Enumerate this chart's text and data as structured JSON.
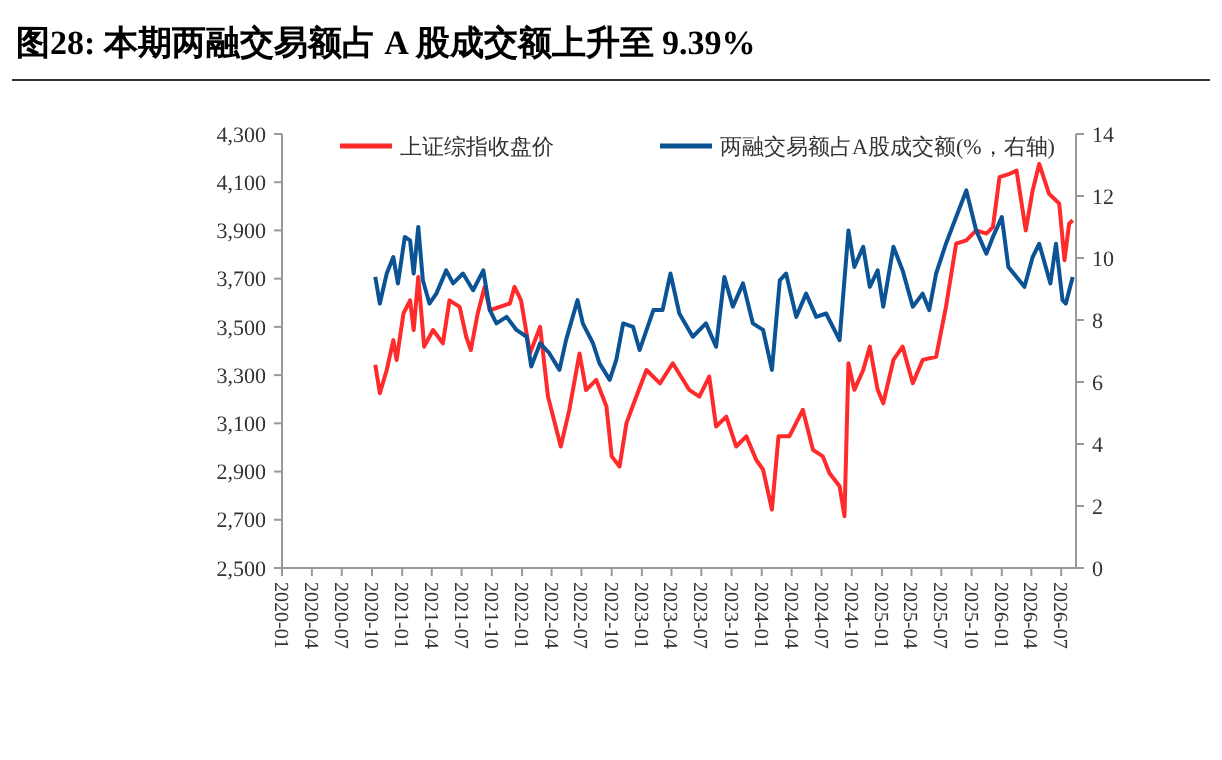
{
  "chart_data": {
    "type": "line",
    "title": "图28: 本期两融交易额占 A 股成交额上升至 9.39%",
    "legend": "top",
    "grid": false,
    "xlim": [
      "2020-01-01",
      "2026-08-15"
    ],
    "xticks": [
      "2020-01",
      "2020-04",
      "2020-07",
      "2020-10",
      "2021-01",
      "2021-04",
      "2021-07",
      "2021-10",
      "2022-01",
      "2022-04",
      "2022-07",
      "2022-10",
      "2023-01",
      "2023-04",
      "2023-07",
      "2023-10",
      "2024-01",
      "2024-04",
      "2024-07",
      "2024-10",
      "2025-01",
      "2025-04",
      "2025-07",
      "2025-10",
      "2026-01",
      "2026-04",
      "2026-07"
    ],
    "ylim": [
      2500,
      4300
    ],
    "yticks": [
      {
        "value": 2500,
        "label": "2,500"
      },
      {
        "value": 2700,
        "label": "2,700"
      },
      {
        "value": 2900,
        "label": "2,900"
      },
      {
        "value": 3100,
        "label": "3,100"
      },
      {
        "value": 3300,
        "label": "3,300"
      },
      {
        "value": 3500,
        "label": "3,500"
      },
      {
        "value": 3700,
        "label": "3,700"
      },
      {
        "value": 3900,
        "label": "3,900"
      },
      {
        "value": 4100,
        "label": "4,100"
      },
      {
        "value": 4300,
        "label": "4,300"
      }
    ],
    "y2lim": [
      0,
      14
    ],
    "y2ticks": [
      0,
      2,
      4,
      6,
      8,
      10,
      12,
      14
    ],
    "series": [
      {
        "name": "上证综指收盘价",
        "color": "#ff2a2a",
        "x": [
          "2020-10-11",
          "2020-10-25",
          "2020-11-15",
          "2020-12-05",
          "2020-12-15",
          "2021-01-05",
          "2021-01-25",
          "2021-02-05",
          "2021-02-19",
          "2021-03-09",
          "2021-04-05",
          "2021-05-05",
          "2021-05-25",
          "2021-06-25",
          "2021-07-15",
          "2021-07-29",
          "2021-08-19",
          "2021-09-09",
          "2021-09-25",
          "2021-10-25",
          "2021-11-25",
          "2021-12-09",
          "2021-12-29",
          "2022-01-25",
          "2022-02-25",
          "2022-03-21",
          "2022-04-29",
          "2022-05-25",
          "2022-06-25",
          "2022-07-15",
          "2022-08-15",
          "2022-09-15",
          "2022-10-01",
          "2022-10-25",
          "2022-11-15",
          "2022-12-15",
          "2023-01-15",
          "2023-02-25",
          "2023-04-05",
          "2023-05-25",
          "2023-06-25",
          "2023-07-25",
          "2023-08-15",
          "2023-09-15",
          "2023-10-15",
          "2023-11-15",
          "2023-12-15",
          "2024-01-05",
          "2024-02-01",
          "2024-02-21",
          "2024-03-25",
          "2024-05-05",
          "2024-06-05",
          "2024-07-05",
          "2024-07-25",
          "2024-08-25",
          "2024-09-09",
          "2024-09-21",
          "2024-10-09",
          "2024-11-05",
          "2024-11-25",
          "2024-12-19",
          "2025-01-05",
          "2025-02-05",
          "2025-03-05",
          "2025-04-05",
          "2025-05-05",
          "2025-06-15",
          "2025-07-15",
          "2025-08-15",
          "2025-09-15",
          "2025-10-15",
          "2025-11-15",
          "2025-12-05",
          "2025-12-25",
          "2026-01-25",
          "2026-02-15",
          "2026-03-15",
          "2026-04-05",
          "2026-04-25",
          "2026-05-25",
          "2026-06-25",
          "2026-07-11",
          "2026-07-25",
          "2026-08-05"
        ],
        "values": [
          3343,
          3225,
          3321,
          3445,
          3363,
          3556,
          3610,
          3487,
          3707,
          3418,
          3487,
          3432,
          3610,
          3583,
          3459,
          3404,
          3556,
          3666,
          3569,
          3583,
          3597,
          3666,
          3610,
          3390,
          3500,
          3211,
          3004,
          3156,
          3390,
          3238,
          3280,
          3170,
          2963,
          2921,
          3101,
          3211,
          3321,
          3266,
          3349,
          3239,
          3211,
          3294,
          3087,
          3128,
          3004,
          3046,
          2949,
          2908,
          2742,
          3046,
          3046,
          3156,
          2990,
          2963,
          2894,
          2839,
          2715,
          3349,
          3239,
          3321,
          3418,
          3239,
          3183,
          3363,
          3418,
          3266,
          3363,
          3376,
          3583,
          3845,
          3859,
          3900,
          3887,
          3914,
          4121,
          4135,
          4148,
          3900,
          4066,
          4176,
          4052,
          4011,
          3776,
          3928,
          3942
        ]
      },
      {
        "name": "两融交易额占A股成交额(%，右轴)",
        "color": "#0b5394",
        "axis": "y2",
        "x": [
          "2020-10-11",
          "2020-10-25",
          "2020-11-15",
          "2020-12-05",
          "2020-12-19",
          "2021-01-09",
          "2021-01-25",
          "2021-02-05",
          "2021-02-19",
          "2021-03-05",
          "2021-03-25",
          "2021-04-15",
          "2021-05-15",
          "2021-06-05",
          "2021-07-05",
          "2021-08-05",
          "2021-09-05",
          "2021-09-25",
          "2021-10-15",
          "2021-11-15",
          "2021-12-15",
          "2022-01-15",
          "2022-01-29",
          "2022-02-25",
          "2022-03-25",
          "2022-04-25",
          "2022-05-15",
          "2022-06-19",
          "2022-07-05",
          "2022-08-05",
          "2022-08-25",
          "2022-09-25",
          "2022-10-15",
          "2022-11-05",
          "2022-12-05",
          "2022-12-25",
          "2023-02-05",
          "2023-03-05",
          "2023-03-29",
          "2023-04-25",
          "2023-06-05",
          "2023-07-15",
          "2023-08-15",
          "2023-09-09",
          "2023-10-05",
          "2023-11-05",
          "2023-12-05",
          "2024-01-05",
          "2024-02-01",
          "2024-02-25",
          "2024-03-15",
          "2024-04-15",
          "2024-05-15",
          "2024-06-15",
          "2024-07-15",
          "2024-08-25",
          "2024-09-21",
          "2024-10-09",
          "2024-11-05",
          "2024-11-25",
          "2024-12-19",
          "2025-01-05",
          "2025-02-05",
          "2025-03-05",
          "2025-04-05",
          "2025-05-05",
          "2025-05-25",
          "2025-06-15",
          "2025-07-15",
          "2025-08-15",
          "2025-09-15",
          "2025-10-15",
          "2025-11-15",
          "2025-12-05",
          "2026-01-01",
          "2026-01-21",
          "2026-02-15",
          "2026-03-11",
          "2026-04-05",
          "2026-04-25",
          "2026-05-29",
          "2026-06-15",
          "2026-07-05",
          "2026-07-15",
          "2026-08-05"
        ],
        "values": [
          9.39,
          8.53,
          9.5,
          10.03,
          9.18,
          10.68,
          10.57,
          9.5,
          11.0,
          9.28,
          8.53,
          8.85,
          9.6,
          9.18,
          9.5,
          8.96,
          9.6,
          8.32,
          7.89,
          8.1,
          7.68,
          7.46,
          6.5,
          7.25,
          6.93,
          6.39,
          7.35,
          8.64,
          7.89,
          7.25,
          6.6,
          6.07,
          6.71,
          7.89,
          7.78,
          7.03,
          8.32,
          8.32,
          9.5,
          8.21,
          7.46,
          7.89,
          7.14,
          9.39,
          8.43,
          9.18,
          7.89,
          7.68,
          6.39,
          9.28,
          9.5,
          8.1,
          8.85,
          8.1,
          8.21,
          7.35,
          10.89,
          9.71,
          10.36,
          9.07,
          9.6,
          8.43,
          10.36,
          9.6,
          8.43,
          8.85,
          8.32,
          9.5,
          10.46,
          11.32,
          12.18,
          10.89,
          10.14,
          10.68,
          11.32,
          9.71,
          9.39,
          9.07,
          10.03,
          10.46,
          9.18,
          10.46,
          8.64,
          8.53,
          9.39
        ]
      }
    ]
  }
}
